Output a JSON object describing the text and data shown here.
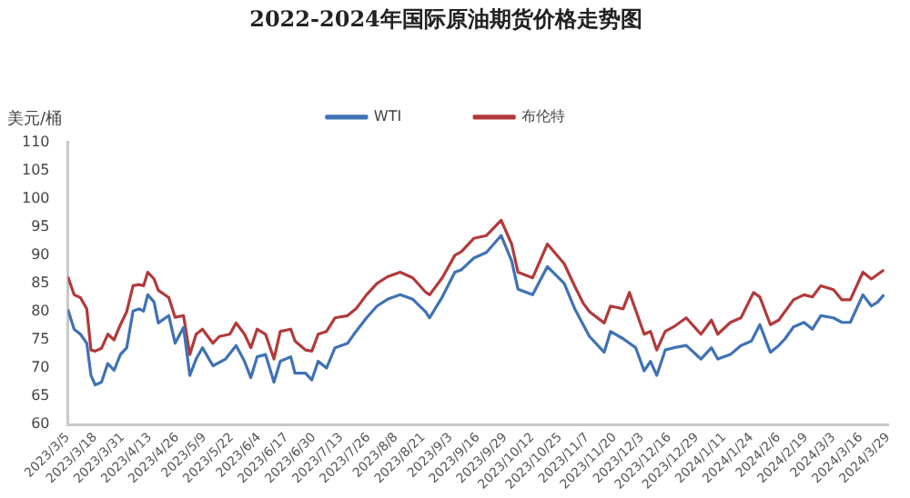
{
  "chart_data": {
    "type": "line",
    "title": "2022-2024年国际原油期货价格走势图",
    "ylabel": "美元/桶",
    "ylim": [
      60,
      110
    ],
    "yticks": [
      60,
      65,
      70,
      75,
      80,
      85,
      90,
      95,
      100,
      105,
      110
    ],
    "xlim": [
      "2023-03-05",
      "2024-03-29"
    ],
    "xticks": [
      {
        "value": "2023-03-05",
        "label": "2023/3/5"
      },
      {
        "value": "2023-03-18",
        "label": "2023/3/18"
      },
      {
        "value": "2023-03-31",
        "label": "2023/3/31"
      },
      {
        "value": "2023-04-13",
        "label": "2023/4/13"
      },
      {
        "value": "2023-04-26",
        "label": "2023/4/26"
      },
      {
        "value": "2023-05-09",
        "label": "2023/5/9"
      },
      {
        "value": "2023-05-22",
        "label": "2023/5/22"
      },
      {
        "value": "2023-06-04",
        "label": "2023/6/4"
      },
      {
        "value": "2023-06-17",
        "label": "2023/6/17"
      },
      {
        "value": "2023-06-30",
        "label": "2023/6/30"
      },
      {
        "value": "2023-07-13",
        "label": "2023/7/13"
      },
      {
        "value": "2023-07-26",
        "label": "2023/7/26"
      },
      {
        "value": "2023-08-08",
        "label": "2023/8/8"
      },
      {
        "value": "2023-08-21",
        "label": "2023/8/21"
      },
      {
        "value": "2023-09-03",
        "label": "2023/9/3"
      },
      {
        "value": "2023-09-16",
        "label": "2023/9/16"
      },
      {
        "value": "2023-09-29",
        "label": "2023/9/29"
      },
      {
        "value": "2023-10-12",
        "label": "2023/10/12"
      },
      {
        "value": "2023-10-25",
        "label": "2023/10/25"
      },
      {
        "value": "2023-11-07",
        "label": "2023/11/7"
      },
      {
        "value": "2023-11-20",
        "label": "2023/11/20"
      },
      {
        "value": "2023-12-03",
        "label": "2023/12/3"
      },
      {
        "value": "2023-12-16",
        "label": "2023/12/16"
      },
      {
        "value": "2023-12-29",
        "label": "2023/12/29"
      },
      {
        "value": "2024-01-11",
        "label": "2024/1/11"
      },
      {
        "value": "2024-01-24",
        "label": "2024/1/24"
      },
      {
        "value": "2024-02-06",
        "label": "2024/2/6"
      },
      {
        "value": "2024-02-19",
        "label": "2024/2/19"
      },
      {
        "value": "2024-03-03",
        "label": "2024/3/3"
      },
      {
        "value": "2024-03-16",
        "label": "2024/3/16"
      },
      {
        "value": "2024-03-29",
        "label": "2024/3/29"
      }
    ],
    "grid": false,
    "legend": "top",
    "marker": "none",
    "line_style": "solid",
    "series": [
      {
        "name": "WTI",
        "color": "#3f72b5",
        "x": [
          "2023-03-05",
          "2023-03-08",
          "2023-03-11",
          "2023-03-14",
          "2023-03-16",
          "2023-03-18",
          "2023-03-21",
          "2023-03-24",
          "2023-03-27",
          "2023-03-30",
          "2023-04-02",
          "2023-04-05",
          "2023-04-08",
          "2023-04-10",
          "2023-04-12",
          "2023-04-15",
          "2023-04-17",
          "2023-04-22",
          "2023-04-25",
          "2023-04-29",
          "2023-05-02",
          "2023-05-05",
          "2023-05-08",
          "2023-05-13",
          "2023-05-19",
          "2023-05-24",
          "2023-05-28",
          "2023-05-31",
          "2023-06-03",
          "2023-06-07",
          "2023-06-11",
          "2023-06-14",
          "2023-06-19",
          "2023-06-21",
          "2023-06-26",
          "2023-06-29",
          "2023-07-02",
          "2023-07-06",
          "2023-07-10",
          "2023-07-16",
          "2023-07-20",
          "2023-07-25",
          "2023-07-30",
          "2023-08-04",
          "2023-08-10",
          "2023-08-16",
          "2023-08-22",
          "2023-08-24",
          "2023-08-30",
          "2023-09-05",
          "2023-09-08",
          "2023-09-14",
          "2023-09-20",
          "2023-09-27",
          "2023-10-02",
          "2023-10-05",
          "2023-10-12",
          "2023-10-19",
          "2023-10-27",
          "2023-11-01",
          "2023-11-05",
          "2023-11-08",
          "2023-11-15",
          "2023-11-18",
          "2023-11-24",
          "2023-11-30",
          "2023-12-04",
          "2023-12-07",
          "2023-12-10",
          "2023-12-14",
          "2023-12-18",
          "2023-12-24",
          "2023-12-31",
          "2024-01-05",
          "2024-01-08",
          "2024-01-14",
          "2024-01-19",
          "2024-01-24",
          "2024-01-28",
          "2024-02-02",
          "2024-02-06",
          "2024-02-09",
          "2024-02-13",
          "2024-02-18",
          "2024-02-22",
          "2024-02-26",
          "2024-03-03",
          "2024-03-07",
          "2024-03-11",
          "2024-03-17",
          "2024-03-21",
          "2024-03-24",
          "2024-03-27"
        ],
        "values": [
          80.4,
          76.9,
          76.0,
          74.4,
          68.7,
          67.0,
          67.5,
          70.8,
          69.6,
          72.4,
          73.6,
          80.1,
          80.5,
          80.1,
          83.0,
          81.7,
          78.0,
          79.3,
          74.4,
          77.2,
          68.7,
          71.6,
          73.6,
          70.4,
          71.6,
          74.0,
          71.2,
          68.3,
          72.0,
          72.4,
          67.5,
          71.2,
          72.0,
          69.1,
          69.1,
          67.9,
          71.2,
          70.0,
          73.6,
          74.4,
          76.5,
          78.9,
          81.0,
          82.2,
          83.0,
          82.2,
          80.0,
          78.9,
          82.6,
          87.0,
          87.4,
          89.5,
          90.5,
          93.5,
          89.0,
          84.0,
          83.0,
          88.0,
          85.0,
          80.5,
          77.7,
          75.6,
          72.8,
          76.5,
          75.2,
          73.6,
          69.5,
          71.2,
          68.7,
          73.2,
          73.6,
          74.0,
          71.6,
          73.6,
          71.6,
          72.4,
          74.0,
          74.8,
          77.7,
          72.8,
          74.0,
          75.2,
          77.3,
          78.1,
          76.9,
          79.3,
          78.9,
          78.1,
          78.1,
          83.0,
          81.0,
          81.7,
          83.0
        ]
      },
      {
        "name": "布伦特",
        "color": "#b23a3a",
        "x": [
          "2023-03-05",
          "2023-03-08",
          "2023-03-11",
          "2023-03-14",
          "2023-03-16",
          "2023-03-18",
          "2023-03-21",
          "2023-03-24",
          "2023-03-27",
          "2023-03-30",
          "2023-04-02",
          "2023-04-05",
          "2023-04-08",
          "2023-04-10",
          "2023-04-12",
          "2023-04-15",
          "2023-04-17",
          "2023-04-22",
          "2023-04-25",
          "2023-04-29",
          "2023-05-02",
          "2023-05-05",
          "2023-05-08",
          "2023-05-13",
          "2023-05-16",
          "2023-05-21",
          "2023-05-24",
          "2023-05-28",
          "2023-05-31",
          "2023-06-03",
          "2023-06-07",
          "2023-06-11",
          "2023-06-14",
          "2023-06-19",
          "2023-06-21",
          "2023-06-26",
          "2023-06-29",
          "2023-07-02",
          "2023-07-06",
          "2023-07-10",
          "2023-07-16",
          "2023-07-20",
          "2023-07-25",
          "2023-07-30",
          "2023-08-04",
          "2023-08-10",
          "2023-08-16",
          "2023-08-22",
          "2023-08-24",
          "2023-08-30",
          "2023-09-05",
          "2023-09-08",
          "2023-09-14",
          "2023-09-20",
          "2023-09-27",
          "2023-10-02",
          "2023-10-05",
          "2023-10-12",
          "2023-10-19",
          "2023-10-27",
          "2023-11-01",
          "2023-11-05",
          "2023-11-08",
          "2023-11-15",
          "2023-11-18",
          "2023-11-24",
          "2023-11-27",
          "2023-12-04",
          "2023-12-07",
          "2023-12-10",
          "2023-12-14",
          "2023-12-18",
          "2023-12-24",
          "2023-12-31",
          "2024-01-05",
          "2024-01-08",
          "2024-01-14",
          "2024-01-19",
          "2024-01-25",
          "2024-01-28",
          "2024-02-02",
          "2024-02-06",
          "2024-02-13",
          "2024-02-18",
          "2024-02-22",
          "2024-02-26",
          "2024-03-03",
          "2024-03-07",
          "2024-03-11",
          "2024-03-17",
          "2024-03-21",
          "2024-03-24",
          "2024-03-27"
        ],
        "values": [
          86.2,
          83.0,
          82.5,
          80.5,
          73.2,
          73.0,
          73.5,
          76.0,
          75.0,
          77.7,
          80.0,
          84.6,
          84.8,
          84.6,
          87.0,
          85.8,
          83.8,
          82.5,
          79.0,
          79.3,
          72.4,
          76.0,
          76.9,
          74.4,
          75.6,
          76.0,
          78.0,
          76.0,
          73.6,
          76.9,
          76.0,
          71.6,
          76.5,
          76.9,
          74.8,
          73.2,
          73.0,
          76.0,
          76.5,
          78.9,
          79.3,
          80.5,
          83.0,
          85.0,
          86.2,
          87.0,
          86.0,
          83.5,
          83.0,
          86.0,
          90.0,
          90.6,
          93.0,
          93.5,
          96.2,
          92.0,
          87.0,
          86.0,
          92.0,
          88.5,
          84.5,
          81.5,
          80.0,
          78.0,
          81.0,
          80.5,
          83.4,
          76.0,
          76.5,
          73.2,
          76.5,
          77.3,
          78.9,
          76.0,
          78.5,
          76.0,
          78.1,
          78.9,
          83.4,
          82.6,
          77.7,
          78.5,
          82.1,
          83.0,
          82.6,
          84.6,
          83.9,
          82.1,
          82.1,
          87.0,
          85.8,
          86.6,
          87.4
        ]
      }
    ]
  }
}
